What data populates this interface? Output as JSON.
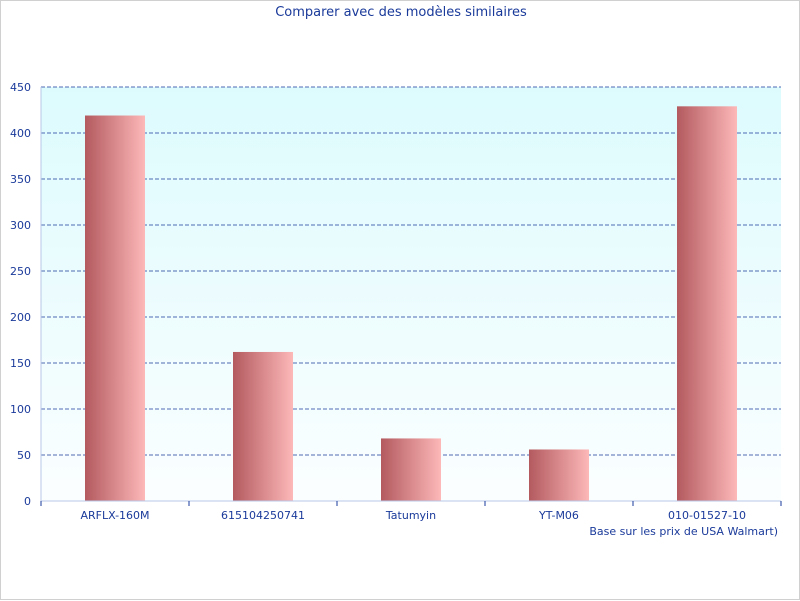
{
  "chart_data": {
    "type": "bar",
    "title": "Comparer avec des modèles similaires",
    "caption": "Base sur les prix de USA Walmart)",
    "categories": [
      "ARFLX-160M",
      "615104250741",
      "Tatumyin",
      "YT-M06",
      "010-01527-10"
    ],
    "values": [
      419,
      162,
      68,
      56,
      429
    ],
    "ylim": [
      0,
      450
    ],
    "yticks": [
      0,
      50,
      100,
      150,
      200,
      250,
      300,
      350,
      400,
      450
    ],
    "grid": true,
    "colors": {
      "bar_dark": "#b35a5f",
      "bar_light": "#fdb8b8",
      "plot_top": "#ddfbfd",
      "plot_bottom": "#fbfeff",
      "grid": "#1a3a9a",
      "text": "#1a3a9a"
    }
  }
}
